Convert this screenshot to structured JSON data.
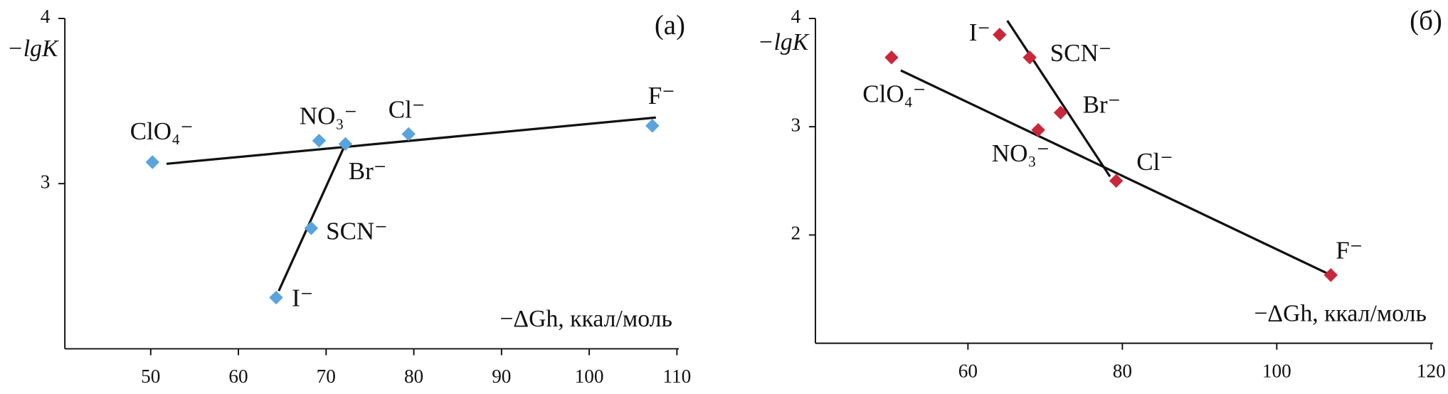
{
  "chart_data": [
    {
      "type": "scatter",
      "panel_label": "(а)",
      "ylabel": "−lgK",
      "xlabel": "−ΔGh, ккал/моль",
      "color": "#5ba3dc",
      "xlim": [
        40,
        110
      ],
      "xticks": [
        50,
        60,
        70,
        80,
        90,
        100,
        110
      ],
      "ylim": [
        2,
        4
      ],
      "yticks": [
        3,
        4
      ],
      "labels": [
        "ClO₄⁻",
        "NO₃⁻",
        "Br⁻",
        "Cl⁻",
        "F⁻",
        "SCN⁻",
        "I⁻"
      ],
      "x": [
        50.2,
        69.2,
        72.2,
        79.4,
        107.2,
        68.3,
        64.3
      ],
      "values": [
        3.13,
        3.26,
        3.24,
        3.3,
        3.35,
        2.73,
        2.31
      ],
      "lines": [
        {
          "x": [
            51.8,
            107.6
          ],
          "values": [
            3.12,
            3.4
          ]
        },
        {
          "x": [
            64.6,
            72.2
          ],
          "values": [
            2.35,
            3.24
          ]
        }
      ]
    },
    {
      "type": "scatter",
      "panel_label": "(б)",
      "ylabel": "−lgK",
      "xlabel": "−ΔGh, ккал/моль",
      "color": "#c8283a",
      "xlim": [
        40,
        120
      ],
      "xticks": [
        60,
        80,
        100,
        120
      ],
      "ylim": [
        1,
        4
      ],
      "yticks": [
        2,
        3,
        4
      ],
      "labels": [
        "ClO₄⁻",
        "I⁻",
        "SCN⁻",
        "Br⁻",
        "NO₃⁻",
        "Cl⁻",
        "F⁻"
      ],
      "x": [
        50.1,
        64.1,
        68.0,
        72.0,
        69.1,
        79.2,
        107.0
      ],
      "values": [
        3.64,
        3.85,
        3.64,
        3.13,
        2.97,
        2.5,
        1.63
      ],
      "lines": [
        {
          "x": [
            51.3,
            107.0
          ],
          "values": [
            3.52,
            1.63
          ]
        },
        {
          "x": [
            65.1,
            78.4
          ],
          "values": [
            3.98,
            2.54
          ]
        }
      ]
    }
  ]
}
